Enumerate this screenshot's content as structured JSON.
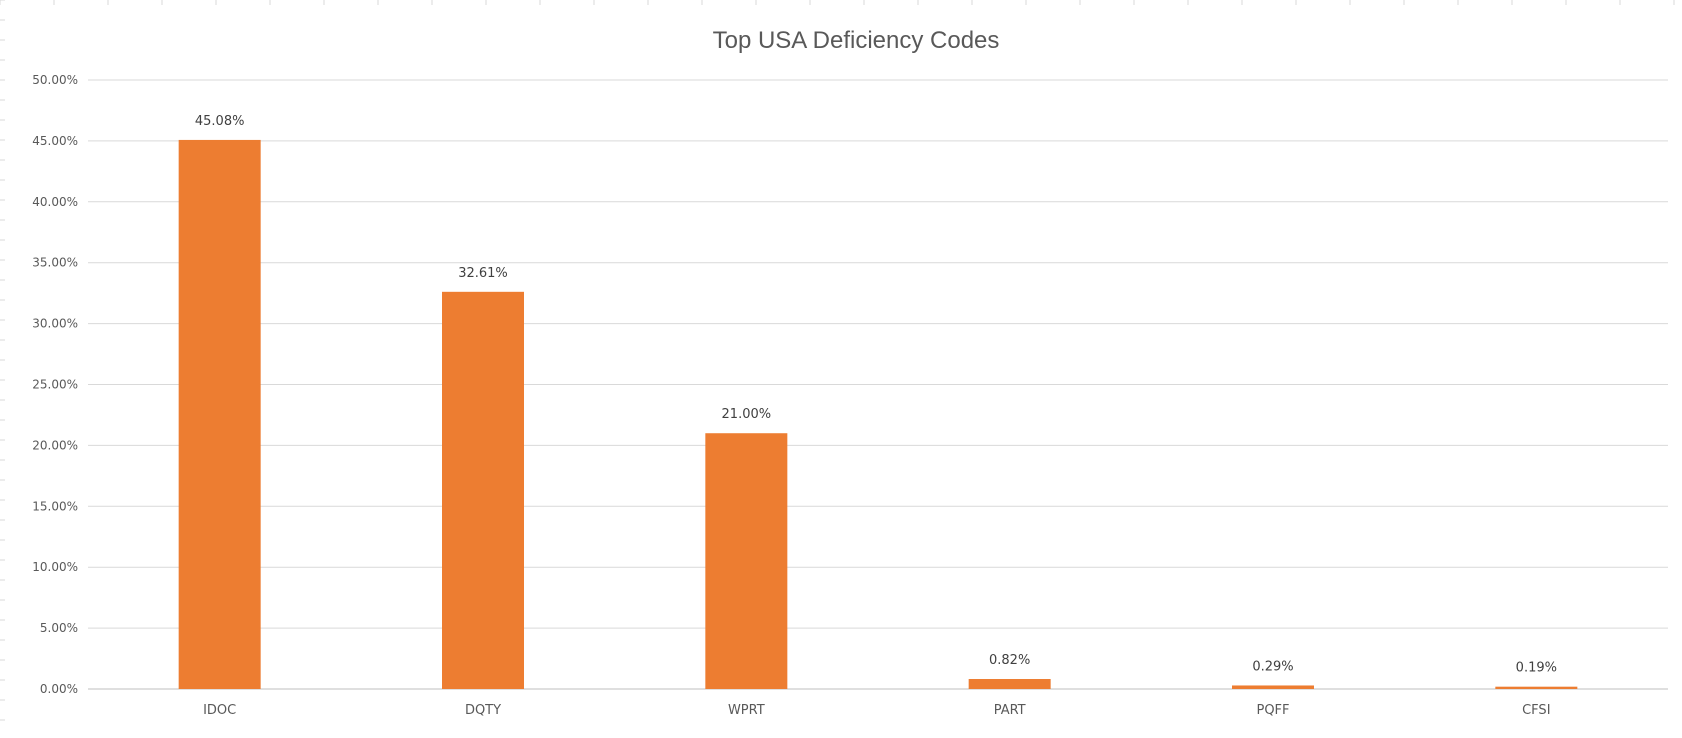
{
  "chart_data": {
    "type": "bar",
    "title": "Top USA Deficiency Codes",
    "xlabel": "",
    "ylabel": "",
    "categories": [
      "IDOC",
      "DQTY",
      "WPRT",
      "PART",
      "PQFF",
      "CFSI"
    ],
    "values": [
      45.08,
      32.61,
      21.0,
      0.82,
      0.29,
      0.19
    ],
    "data_labels": [
      "45.08%",
      "32.61%",
      "21.00%",
      "0.82%",
      "0.29%",
      "0.19%"
    ],
    "ylim": [
      0,
      50
    ],
    "yticks": [
      0,
      5,
      10,
      15,
      20,
      25,
      30,
      35,
      40,
      45,
      50
    ],
    "ytick_labels": [
      "0.00%",
      "5.00%",
      "10.00%",
      "15.00%",
      "20.00%",
      "25.00%",
      "30.00%",
      "35.00%",
      "40.00%",
      "45.00%",
      "50.00%"
    ],
    "bar_color": "#ed7d31",
    "grid": true,
    "legend": "none"
  }
}
